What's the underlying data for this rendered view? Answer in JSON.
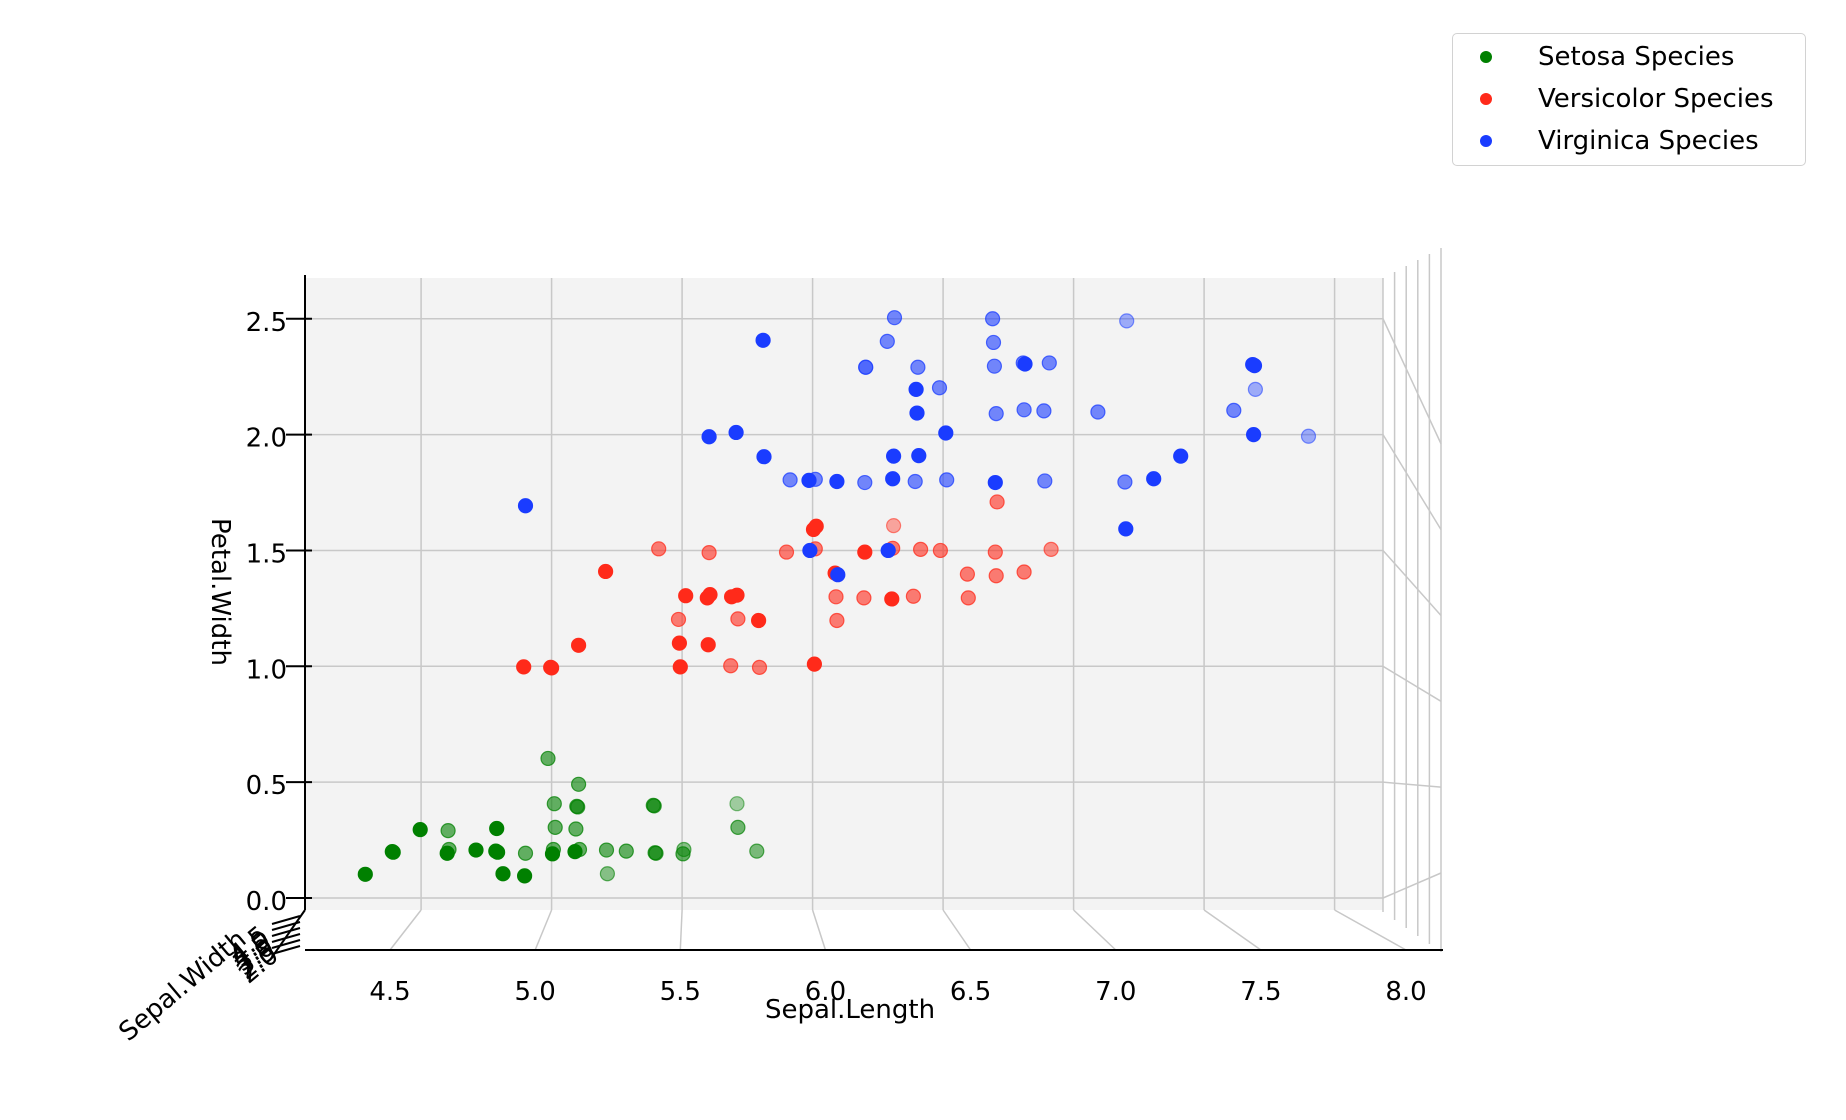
{
  "chart_data": {
    "type": "scatter",
    "projection": "3d",
    "xlabel": "Sepal.Length",
    "ylabel": "Petal.Width",
    "zlabel": "Sepal.Width",
    "xlim": [
      4.2,
      8.1
    ],
    "ylim": [
      0.0,
      2.6
    ],
    "xticks": [
      "4.5",
      "5.0",
      "5.5",
      "6.0",
      "6.5",
      "7.0",
      "7.5",
      "8.0"
    ],
    "yticks": [
      "0.0",
      "0.5",
      "1.0",
      "1.5",
      "2.0",
      "2.5"
    ],
    "zticks": [
      "2.0",
      "2.5",
      "3.0",
      "3.5",
      "4.0",
      "4.5"
    ],
    "grid": true,
    "legend_position": "top-right",
    "series": [
      {
        "name": "Setosa Species",
        "color": "#008000",
        "x": [
          4.3,
          4.4,
          4.4,
          4.5,
          4.6,
          4.6,
          4.6,
          4.7,
          4.8,
          4.8,
          4.8,
          4.8,
          4.9,
          4.9,
          5.0,
          5.0,
          5.0,
          5.0,
          5.0,
          5.1,
          5.1,
          5.1,
          5.1,
          5.1,
          5.1,
          5.2,
          5.2,
          5.3,
          5.4,
          5.4,
          5.4,
          5.4,
          5.5,
          5.5,
          5.7,
          5.7,
          5.8
        ],
        "y": [
          0.1,
          0.2,
          0.2,
          0.3,
          0.2,
          0.3,
          0.2,
          0.2,
          0.1,
          0.2,
          0.3,
          0.2,
          0.1,
          0.2,
          0.2,
          0.2,
          0.4,
          0.3,
          0.6,
          0.2,
          0.3,
          0.4,
          0.4,
          0.5,
          0.2,
          0.2,
          0.1,
          0.2,
          0.4,
          0.4,
          0.2,
          0.2,
          0.2,
          0.2,
          0.4,
          0.3,
          0.2
        ],
        "alpha": [
          1.0,
          1.0,
          1.0,
          1.0,
          1.0,
          0.6,
          0.6,
          1.0,
          1.0,
          1.0,
          1.0,
          1.0,
          1.0,
          0.6,
          1.0,
          0.6,
          0.6,
          0.6,
          0.6,
          1.0,
          0.6,
          0.6,
          0.6,
          0.6,
          0.6,
          0.6,
          0.45,
          0.6,
          0.6,
          0.6,
          0.6,
          0.6,
          0.6,
          0.45,
          0.35,
          0.55,
          0.5
        ]
      },
      {
        "name": "Versicolor Species",
        "color": "#ff2a1a",
        "x": [
          4.9,
          5.0,
          5.0,
          5.1,
          5.2,
          5.4,
          5.5,
          5.5,
          5.5,
          5.5,
          5.6,
          5.6,
          5.6,
          5.6,
          5.7,
          5.7,
          5.7,
          5.7,
          5.8,
          5.8,
          5.9,
          6.0,
          6.0,
          6.0,
          6.0,
          6.1,
          6.1,
          6.1,
          6.2,
          6.2,
          6.3,
          6.3,
          6.3,
          6.4,
          6.4,
          6.5,
          6.6,
          6.6,
          6.7,
          6.7,
          6.7,
          6.8,
          6.9
        ],
        "y": [
          1.0,
          1.0,
          1.0,
          1.1,
          1.4,
          1.5,
          1.3,
          1.2,
          1.1,
          1.0,
          1.3,
          1.1,
          1.5,
          1.3,
          1.3,
          1.2,
          1.0,
          1.3,
          1.2,
          1.0,
          1.5,
          1.6,
          1.0,
          1.5,
          1.6,
          1.4,
          1.3,
          1.2,
          1.3,
          1.5,
          1.3,
          1.5,
          1.6,
          1.5,
          1.3,
          1.5,
          1.4,
          1.3,
          1.5,
          1.4,
          1.7,
          1.4,
          1.5
        ],
        "alpha": [
          1.0,
          1.0,
          1.0,
          1.0,
          1.0,
          0.6,
          1.0,
          0.6,
          1.0,
          1.0,
          1.0,
          1.0,
          0.6,
          1.0,
          1.0,
          0.6,
          0.6,
          1.0,
          1.0,
          0.6,
          0.6,
          1.0,
          1.0,
          0.6,
          1.0,
          1.0,
          0.6,
          0.6,
          0.6,
          1.0,
          1.0,
          0.6,
          0.4,
          0.6,
          0.6,
          0.6,
          0.6,
          0.6,
          0.6,
          0.6,
          0.6,
          0.6,
          0.5
        ]
      },
      {
        "name": "Virginica Species",
        "color": "#1a3cff",
        "x": [
          4.9,
          5.6,
          5.7,
          5.8,
          5.8,
          6.0,
          6.0,
          6.1,
          6.1,
          6.2,
          6.2,
          6.3,
          6.3,
          6.3,
          6.3,
          6.3,
          6.4,
          6.4,
          6.4,
          6.4,
          6.4,
          6.5,
          6.5,
          6.5,
          6.7,
          6.7,
          6.7,
          6.7,
          6.7,
          6.8,
          6.8,
          6.8,
          6.9,
          6.9,
          7.1,
          7.2,
          7.2,
          7.2,
          7.3,
          7.4,
          7.6,
          7.7,
          7.7,
          7.7,
          7.7,
          7.9,
          6.2,
          6.9,
          6.0,
          5.9
        ],
        "y": [
          1.7,
          2.0,
          2.0,
          2.4,
          1.9,
          1.8,
          1.5,
          1.8,
          1.4,
          1.8,
          2.3,
          1.8,
          1.9,
          2.5,
          2.4,
          1.5,
          1.8,
          2.2,
          2.1,
          2.3,
          1.9,
          2.0,
          1.8,
          2.2,
          2.5,
          2.4,
          2.3,
          1.8,
          2.1,
          2.3,
          2.1,
          2.3,
          2.1,
          1.8,
          2.1,
          1.8,
          1.6,
          2.5,
          1.8,
          1.9,
          2.1,
          2.3,
          2.0,
          2.3,
          2.2,
          2.0,
          2.3,
          2.3,
          1.8,
          1.8
        ],
        "alpha": [
          1.0,
          1.0,
          1.0,
          1.0,
          1.0,
          1.0,
          1.0,
          1.0,
          1.0,
          0.6,
          0.5,
          1.0,
          1.0,
          0.6,
          0.6,
          1.0,
          0.6,
          1.0,
          1.0,
          0.6,
          1.0,
          1.0,
          0.6,
          0.6,
          0.6,
          0.6,
          0.6,
          1.0,
          0.6,
          0.6,
          0.6,
          1.0,
          0.6,
          0.6,
          0.6,
          0.6,
          1.0,
          0.4,
          1.0,
          1.0,
          0.6,
          1.0,
          1.0,
          1.0,
          0.4,
          0.4,
          0.5,
          0.6,
          0.6,
          0.6
        ]
      }
    ]
  }
}
